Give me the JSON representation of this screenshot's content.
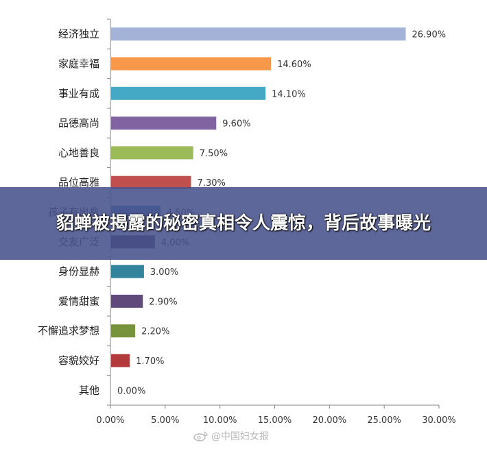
{
  "chart_data": {
    "type": "bar",
    "orientation": "horizontal",
    "categories": [
      "经济独立",
      "家庭幸福",
      "事业有成",
      "品德高尚",
      "心地善良",
      "品位高雅",
      "孩子有出息",
      "交友广泛",
      "身份显赫",
      "爱情甜蜜",
      "不懈追求梦想",
      "容貌姣好",
      "其他"
    ],
    "values": [
      26.9,
      14.6,
      14.1,
      9.6,
      7.5,
      7.3,
      4.5,
      4.0,
      3.0,
      2.9,
      2.2,
      1.7,
      0.0
    ],
    "value_labels": [
      "26.90%",
      "14.60%",
      "14.10%",
      "9.60%",
      "7.50%",
      "7.30%",
      "4.50%",
      "4.00%",
      "3.00%",
      "2.90%",
      "2.20%",
      "1.70%",
      "0.00%"
    ],
    "colors": [
      "#a3b3d8",
      "#f7984a",
      "#43a9c4",
      "#8064a2",
      "#9bbb59",
      "#c0504d",
      "#4f81bd",
      "#4b3c5b",
      "#31849b",
      "#604a7b",
      "#77933c",
      "#b23a3a",
      "#bbbbbb"
    ],
    "xlim": [
      0,
      30
    ],
    "xticks": [
      "0.00%",
      "5.00%",
      "10.00%",
      "15.00%",
      "20.00%",
      "25.00%",
      "30.00%"
    ],
    "grid": false
  },
  "overlay": {
    "headline": "貂蝉被揭露的秘密真相令人震惊，背后故事曝光"
  },
  "watermark": {
    "text": "@中国妇女报"
  }
}
